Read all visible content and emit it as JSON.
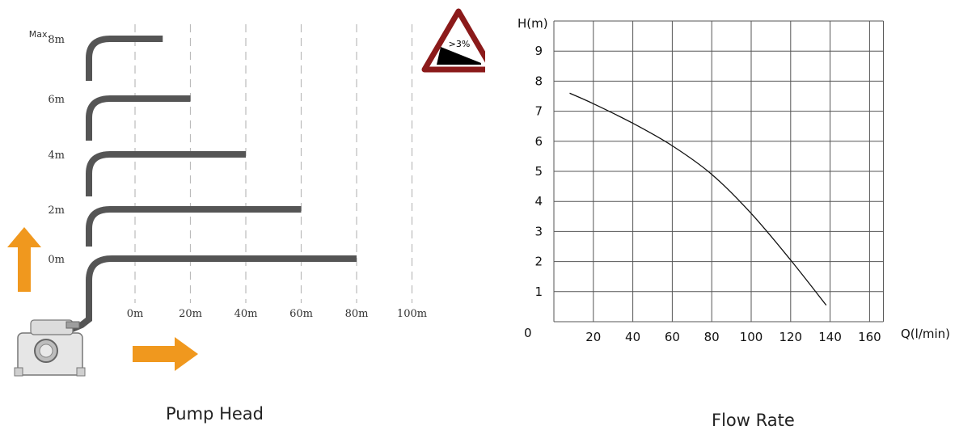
{
  "pump_head": {
    "caption": "Pump Head",
    "max_prefix": "Max.",
    "rows": [
      {
        "height_label": "8m",
        "horizontal_m": 10
      },
      {
        "height_label": "6m",
        "horizontal_m": 20
      },
      {
        "height_label": "4m",
        "horizontal_m": 40
      },
      {
        "height_label": "2m",
        "horizontal_m": 60
      },
      {
        "height_label": "0m",
        "horizontal_m": 80
      }
    ],
    "distance_ticks": [
      "0m",
      "20m",
      "40m",
      "60m",
      "80m",
      "100m"
    ],
    "slope_sign": ">3%",
    "colors": {
      "pipe": "#555555",
      "arrow": "#f0981e",
      "sign_border": "#8b1a1a",
      "grid": "#bbbbbb"
    }
  },
  "chart_data": {
    "type": "line",
    "title": "",
    "xlabel": "Q(l/min)",
    "ylabel": "H(m)",
    "caption": "Flow Rate",
    "origin_label": "0",
    "xlim": [
      0,
      170
    ],
    "ylim": [
      0,
      10
    ],
    "x_ticks": [
      20,
      40,
      60,
      80,
      100,
      120,
      140,
      160
    ],
    "y_ticks": [
      1,
      2,
      3,
      4,
      5,
      6,
      7,
      8,
      9
    ],
    "grid": true,
    "series": [
      {
        "x": [
          8,
          20,
          40,
          60,
          80,
          100,
          120,
          138
        ],
        "y": [
          7.6,
          7.25,
          6.6,
          5.85,
          4.9,
          3.6,
          2.05,
          0.55
        ]
      }
    ]
  }
}
